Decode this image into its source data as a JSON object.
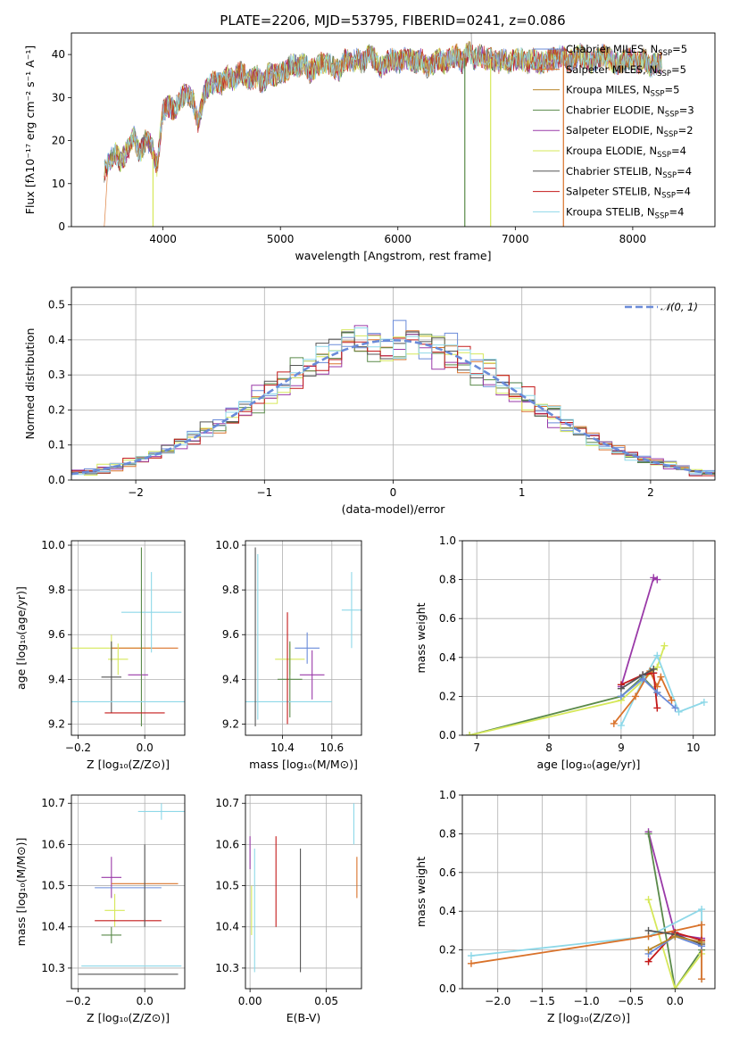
{
  "title": "PLATE=2206, MJD=53795, FIBERID=0241, z=0.086",
  "models": [
    {
      "name": "Chabrier MILES, N",
      "nssp": "5",
      "color": "#6a8bd9"
    },
    {
      "name": "Salpeter MILES, N",
      "nssp": "5",
      "color": "#d9722a"
    },
    {
      "name": "Kroupa MILES, N",
      "nssp": "5",
      "color": "#b8862b"
    },
    {
      "name": "Chabrier ELODIE, N",
      "nssp": "3",
      "color": "#5a8a4a"
    },
    {
      "name": "Salpeter ELODIE, N",
      "nssp": "2",
      "color": "#9a3aa8"
    },
    {
      "name": "Kroupa ELODIE, N",
      "nssp": "4",
      "color": "#d6e85a"
    },
    {
      "name": "Chabrier STELIB, N",
      "nssp": "4",
      "color": "#555555"
    },
    {
      "name": "Salpeter STELIB, N",
      "nssp": "4",
      "color": "#c41a1a"
    },
    {
      "name": "Kroupa STELIB, N",
      "nssp": "4",
      "color": "#8ed8e8"
    }
  ],
  "subscript": "SSP",
  "chart_data": [
    {
      "id": "spectrum",
      "type": "line",
      "xlabel": "wavelength [Angstrom, rest frame]",
      "ylabel": "Flux [fλ10⁻¹⁷ erg cm⁻² s⁻¹ A⁻¹]",
      "xlim": [
        3220,
        8700
      ],
      "ylim": [
        0,
        45
      ],
      "xticks": [
        4000,
        5000,
        6000,
        7000,
        8000
      ],
      "yticks": [
        0,
        10,
        20,
        30,
        40
      ],
      "series": [
        {
          "x": [
            3500,
            3520,
            3560,
            3600,
            3640,
            3700,
            3750,
            3800,
            3850,
            3900,
            3950,
            4000,
            4050,
            4100,
            4150,
            4200,
            4250,
            4300,
            4350,
            4400,
            4450,
            4500,
            4550,
            4600,
            4650,
            4700,
            4750,
            4800,
            4850,
            4900,
            4950,
            5000,
            5050,
            5100,
            5150,
            5200,
            5250,
            5300,
            5350,
            5400,
            5450,
            5500,
            5550,
            5600,
            5650,
            5700,
            5750,
            5800,
            5850,
            5900,
            5950,
            6000,
            6050,
            6100,
            6150,
            6200,
            6250,
            6300,
            6350,
            6400,
            6450,
            6500,
            6550,
            6600,
            6650,
            6700,
            6750,
            6800,
            6850,
            6900,
            6950,
            7000,
            7050,
            7100,
            7150,
            7200,
            7250,
            7300,
            7350,
            7400,
            7450,
            7500,
            7550,
            7600,
            7650,
            7700,
            7750,
            7800,
            7850,
            7900,
            7950,
            8000,
            8050,
            8100,
            8150,
            8200,
            8250
          ],
          "y": [
            13,
            14,
            16,
            17,
            15,
            18,
            21,
            17,
            20,
            19,
            14,
            27,
            28,
            27,
            30,
            31,
            30,
            24,
            31,
            33,
            34,
            33,
            35,
            34,
            36,
            35,
            34,
            35,
            33,
            36,
            35,
            36,
            36,
            38,
            37,
            38,
            36,
            37,
            38,
            38,
            37,
            36,
            39,
            38,
            39,
            38,
            40,
            39,
            37,
            38,
            39,
            38,
            39,
            39,
            38,
            39,
            37,
            38,
            39,
            38,
            39,
            40,
            38,
            41,
            39,
            40,
            39,
            39,
            38,
            39,
            38,
            39,
            39,
            38,
            39,
            38,
            38,
            39,
            39,
            40,
            38,
            39,
            40,
            39,
            38,
            39,
            40,
            39,
            38,
            38,
            39,
            39,
            38,
            39,
            37,
            38,
            38
          ]
        }
      ]
    },
    {
      "id": "residuals",
      "type": "line",
      "legend": "𝒩(0, 1)",
      "xlabel": "(data-model)/error",
      "ylabel": "Normed distribution",
      "xlim": [
        -2.5,
        2.5
      ],
      "ylim": [
        0,
        0.55
      ],
      "xticks": [
        -2,
        -1,
        0,
        1,
        2
      ],
      "yticks": [
        0.0,
        0.1,
        0.2,
        0.3,
        0.4,
        0.5
      ]
    },
    {
      "id": "age_vs_Z",
      "type": "scatter",
      "xlabel": "Z [log₁₀(Z/Z⊙)]",
      "ylabel": "age  [log₁₀(age/yr)]",
      "xlim": [
        -0.22,
        0.12
      ],
      "ylim": [
        9.15,
        10.02
      ],
      "xticks": [
        -0.2,
        0.0
      ],
      "yticks": [
        9.2,
        9.4,
        9.6,
        9.8,
        10.0
      ],
      "points": [
        {
          "x": -0.1,
          "y": 9.54,
          "ex": 0.12,
          "ey": 0.06,
          "c": 5
        },
        {
          "x": 0.0,
          "y": 9.54,
          "ex": 0.1,
          "ey": 0.0,
          "c": 1
        },
        {
          "x": -0.08,
          "y": 9.49,
          "ex": 0.03,
          "ey": 0.07,
          "c": 5
        },
        {
          "x": 0.02,
          "y": 9.7,
          "ex": 0.09,
          "ey": 0.18,
          "c": 8
        },
        {
          "x": -0.02,
          "y": 9.42,
          "ex": 0.03,
          "ey": 0.0,
          "c": 4
        },
        {
          "x": -0.1,
          "y": 9.41,
          "ex": 0.03,
          "ey": 0.16,
          "c": 6
        },
        {
          "x": -0.01,
          "y": 9.59,
          "ex": 0.0,
          "ey": 0.4,
          "c": 3
        },
        {
          "x": 0.0,
          "y": 9.3,
          "ex": 0.22,
          "ey": 0.0,
          "c": 8
        },
        {
          "x": -0.03,
          "y": 9.25,
          "ex": 0.09,
          "ey": 0.0,
          "c": 7
        }
      ]
    },
    {
      "id": "age_vs_mass",
      "type": "scatter",
      "xlabel": "mass [log₁₀(M/M⊙)]",
      "ylabel": "",
      "xlim": [
        10.25,
        10.72
      ],
      "ylim": [
        9.15,
        10.02
      ],
      "xticks": [
        10.4,
        10.6
      ],
      "yticks": [
        9.2,
        9.4,
        9.6,
        9.8,
        10.0
      ],
      "points": [
        {
          "x": 10.5,
          "y": 9.54,
          "ex": 0.05,
          "ey": 0.07,
          "c": 0
        },
        {
          "x": 10.68,
          "y": 9.71,
          "ex": 0.04,
          "ey": 0.17,
          "c": 8
        },
        {
          "x": 10.43,
          "y": 9.49,
          "ex": 0.06,
          "ey": 0.07,
          "c": 5
        },
        {
          "x": 10.52,
          "y": 9.42,
          "ex": 0.05,
          "ey": 0.11,
          "c": 4
        },
        {
          "x": 10.43,
          "y": 9.4,
          "ex": 0.05,
          "ey": 0.17,
          "c": 3
        },
        {
          "x": 10.42,
          "y": 9.3,
          "ex": 0.18,
          "ey": 0.0,
          "c": 8
        },
        {
          "x": 10.42,
          "y": 9.45,
          "ex": 0.0,
          "ey": 0.25,
          "c": 7
        },
        {
          "x": 10.29,
          "y": 9.59,
          "ex": 0.0,
          "ey": 0.4,
          "c": 6
        },
        {
          "x": 10.3,
          "y": 9.59,
          "ex": 0.0,
          "ey": 0.37,
          "c": 8
        }
      ]
    },
    {
      "id": "weight_vs_age",
      "type": "line",
      "xlabel": "age  [log₁₀(age/yr)]",
      "ylabel": "mass weight",
      "xlim": [
        6.8,
        10.3
      ],
      "ylim": [
        0.0,
        1.0
      ],
      "xticks": [
        7,
        8,
        9,
        10
      ],
      "yticks": [
        0.0,
        0.2,
        0.4,
        0.6,
        0.8,
        1.0
      ],
      "series": [
        {
          "c": 4,
          "x": [
            9.0,
            9.45,
            9.5
          ],
          "y": [
            0.25,
            0.81,
            0.8
          ]
        },
        {
          "c": 3,
          "x": [
            6.9,
            9.0,
            9.3,
            9.5
          ],
          "y": [
            0.0,
            0.2,
            0.3,
            0.22
          ]
        },
        {
          "c": 5,
          "x": [
            6.9,
            9.0,
            9.3,
            9.5,
            9.6
          ],
          "y": [
            0.0,
            0.18,
            0.28,
            0.35,
            0.46
          ]
        },
        {
          "c": 8,
          "x": [
            9.0,
            9.3,
            9.5,
            9.8,
            10.15
          ],
          "y": [
            0.05,
            0.28,
            0.41,
            0.12,
            0.17
          ]
        },
        {
          "c": 1,
          "x": [
            8.9,
            9.2,
            9.4,
            9.5,
            9.55,
            9.7
          ],
          "y": [
            0.06,
            0.2,
            0.33,
            0.25,
            0.3,
            0.18
          ]
        },
        {
          "c": 7,
          "x": [
            9.0,
            9.3,
            9.45,
            9.5
          ],
          "y": [
            0.26,
            0.31,
            0.32,
            0.14
          ]
        },
        {
          "c": 6,
          "x": [
            9.0,
            9.3,
            9.45
          ],
          "y": [
            0.24,
            0.31,
            0.34
          ]
        },
        {
          "c": 0,
          "x": [
            9.0,
            9.3,
            9.5,
            9.75
          ],
          "y": [
            0.2,
            0.29,
            0.22,
            0.14
          ]
        }
      ]
    },
    {
      "id": "mass_vs_Z",
      "type": "scatter",
      "xlabel": "Z [log₁₀(Z/Z⊙)]",
      "ylabel": "mass [log₁₀(M/M⊙)]",
      "xlim": [
        -0.22,
        0.12
      ],
      "ylim": [
        10.25,
        10.72
      ],
      "xticks": [
        -0.2,
        0.0
      ],
      "yticks": [
        10.3,
        10.4,
        10.5,
        10.6,
        10.7
      ],
      "points": [
        {
          "x": 0.05,
          "y": 10.68,
          "ex": 0.07,
          "ey": 0.02,
          "c": 8
        },
        {
          "x": -0.1,
          "y": 10.52,
          "ex": 0.03,
          "ey": 0.05,
          "c": 4
        },
        {
          "x": 0.0,
          "y": 10.505,
          "ex": 0.1,
          "ey": 0.0,
          "c": 1
        },
        {
          "x": -0.05,
          "y": 10.495,
          "ex": 0.1,
          "ey": 0.0,
          "c": 0
        },
        {
          "x": -0.09,
          "y": 10.44,
          "ex": 0.03,
          "ey": 0.04,
          "c": 5
        },
        {
          "x": -0.05,
          "y": 10.415,
          "ex": 0.1,
          "ey": 0.0,
          "c": 7
        },
        {
          "x": -0.1,
          "y": 10.38,
          "ex": 0.03,
          "ey": 0.02,
          "c": 3
        },
        {
          "x": -0.04,
          "y": 10.305,
          "ex": 0.15,
          "ey": 0.0,
          "c": 8
        },
        {
          "x": -0.05,
          "y": 10.285,
          "ex": 0.15,
          "ey": 0.0,
          "c": 6
        },
        {
          "x": 0.0,
          "y": 10.5,
          "ex": 0.0,
          "ey": 0.1,
          "c": 6
        }
      ]
    },
    {
      "id": "mass_vs_EBV",
      "type": "scatter",
      "xlabel": "E(B-V)",
      "ylabel": "",
      "xlim": [
        -0.003,
        0.073
      ],
      "ylim": [
        10.25,
        10.72
      ],
      "xticks": [
        0.0,
        0.05
      ],
      "yticks": [
        10.3,
        10.4,
        10.5,
        10.6,
        10.7
      ],
      "points": [
        {
          "x": 0.0,
          "y": 10.58,
          "ex": 0,
          "ey": 0.04,
          "c": 4
        },
        {
          "x": 0.003,
          "y": 10.44,
          "ex": 0,
          "ey": 0.15,
          "c": 8
        },
        {
          "x": 0.001,
          "y": 10.44,
          "ex": 0,
          "ey": 0.06,
          "c": 5
        },
        {
          "x": 0.017,
          "y": 10.51,
          "ex": 0,
          "ey": 0.11,
          "c": 7
        },
        {
          "x": 0.033,
          "y": 10.44,
          "ex": 0,
          "ey": 0.15,
          "c": 6
        },
        {
          "x": 0.068,
          "y": 10.65,
          "ex": 0,
          "ey": 0.05,
          "c": 8
        },
        {
          "x": 0.07,
          "y": 10.52,
          "ex": 0,
          "ey": 0.05,
          "c": 1
        }
      ]
    },
    {
      "id": "weight_vs_Z",
      "type": "line",
      "xlabel": "Z [log₁₀(Z/Z⊙)]",
      "ylabel": "mass weight",
      "xlim": [
        -2.4,
        0.45
      ],
      "ylim": [
        0.0,
        1.0
      ],
      "xticks": [
        -2.0,
        -1.5,
        -1.0,
        -0.5,
        0.0
      ],
      "yticks": [
        0.0,
        0.2,
        0.4,
        0.6,
        0.8,
        1.0
      ],
      "series": [
        {
          "c": 4,
          "x": [
            -0.3,
            0.0,
            0.3
          ],
          "y": [
            0.81,
            0.28,
            0.26
          ]
        },
        {
          "c": 3,
          "x": [
            -0.3,
            0.0,
            0.3
          ],
          "y": [
            0.8,
            0.0,
            0.2
          ]
        },
        {
          "c": 5,
          "x": [
            -0.3,
            0.0,
            0.3
          ],
          "y": [
            0.46,
            0.0,
            0.18
          ]
        },
        {
          "c": 8,
          "x": [
            -2.3,
            -0.3,
            0.3,
            0.3
          ],
          "y": [
            0.17,
            0.27,
            0.41,
            0.05
          ]
        },
        {
          "c": 1,
          "x": [
            -2.3,
            -0.3,
            0.3,
            0.3
          ],
          "y": [
            0.13,
            0.27,
            0.33,
            0.05
          ]
        },
        {
          "c": 7,
          "x": [
            -0.3,
            0.0,
            0.3
          ],
          "y": [
            0.14,
            0.29,
            0.25
          ]
        },
        {
          "c": 6,
          "x": [
            -0.3,
            0.0,
            0.3
          ],
          "y": [
            0.3,
            0.28,
            0.23
          ]
        },
        {
          "c": 0,
          "x": [
            -0.3,
            0.0,
            0.3
          ],
          "y": [
            0.18,
            0.27,
            0.22
          ]
        },
        {
          "c": 2,
          "x": [
            -0.3,
            0.0,
            0.3
          ],
          "y": [
            0.2,
            0.27,
            0.24
          ]
        }
      ]
    }
  ]
}
